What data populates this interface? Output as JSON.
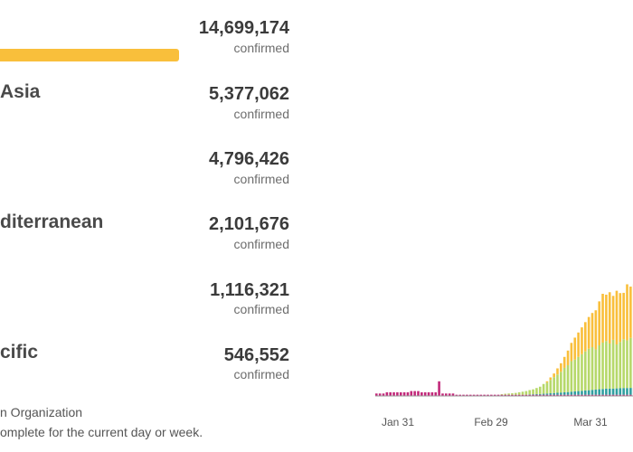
{
  "regions": [
    {
      "name": "",
      "count": "14,699,174",
      "label": "confirmed"
    },
    {
      "name": "Asia",
      "count": "5,377,062",
      "label": "confirmed"
    },
    {
      "name": "",
      "count": "4,796,426",
      "label": "confirmed"
    },
    {
      "name": "diterranean",
      "count": "2,101,676",
      "label": "confirmed"
    },
    {
      "name": "",
      "count": "1,116,321",
      "label": "confirmed"
    },
    {
      "name": "cific",
      "count": "546,552",
      "label": "confirmed"
    }
  ],
  "footnotes": [
    "n Organization",
    "omplete for the current day or week."
  ],
  "colors": {
    "bar_highlight": "#f9bf3b",
    "series_magenta": "#c2297a",
    "series_yellow": "#f9bf3b",
    "series_green": "#b6d86a",
    "series_teal": "#2f9fa0",
    "series_blue": "#3d6fb5"
  },
  "chart_data": {
    "type": "bar",
    "stacked": true,
    "x_ticks": [
      "Jan 31",
      "Feb 29",
      "Mar 31"
    ],
    "note": "daily stacked bars; values not labeled, relative heights 0-1 estimated",
    "series": [
      {
        "color_key": "series_magenta",
        "values": [
          0.02,
          0.02,
          0.02,
          0.03,
          0.03,
          0.03,
          0.03,
          0.03,
          0.03,
          0.03,
          0.04,
          0.04,
          0.04,
          0.03,
          0.03,
          0.03,
          0.03,
          0.03,
          0.12,
          0.02,
          0.02,
          0.02,
          0.02,
          0.01,
          0.01,
          0.01,
          0.01,
          0.01,
          0.01,
          0.01,
          0.01,
          0.01,
          0.01,
          0.01,
          0.01,
          0.01,
          0.01,
          0.01,
          0.01,
          0.01,
          0.01,
          0.01,
          0.01,
          0.01,
          0.01,
          0.01,
          0.01,
          0.01,
          0.01,
          0.01,
          0.01,
          0.01,
          0.01,
          0.01,
          0.01,
          0.01,
          0.01,
          0.01,
          0.01,
          0.01,
          0.01,
          0.01,
          0.01,
          0.01,
          0.01,
          0.01,
          0.01,
          0.01,
          0.01,
          0.01,
          0.01,
          0.01,
          0.01,
          0.01,
          0.01
        ]
      },
      {
        "color_key": "series_teal",
        "values": [
          0,
          0,
          0,
          0,
          0,
          0,
          0,
          0,
          0,
          0,
          0,
          0,
          0,
          0,
          0,
          0,
          0,
          0,
          0,
          0,
          0,
          0,
          0,
          0,
          0,
          0,
          0,
          0,
          0,
          0,
          0,
          0,
          0,
          0,
          0,
          0,
          0,
          0,
          0,
          0,
          0,
          0,
          0,
          0,
          0.003,
          0.004,
          0.005,
          0.006,
          0.008,
          0.01,
          0.012,
          0.014,
          0.016,
          0.018,
          0.02,
          0.022,
          0.025,
          0.028,
          0.03,
          0.032,
          0.035,
          0.037,
          0.04,
          0.042,
          0.045,
          0.047,
          0.05,
          0.05,
          0.05,
          0.052,
          0.053,
          0.055,
          0.055,
          0.056,
          0.057
        ]
      },
      {
        "color_key": "series_green",
        "values": [
          0,
          0,
          0,
          0,
          0,
          0,
          0,
          0,
          0,
          0,
          0,
          0,
          0,
          0,
          0,
          0,
          0,
          0,
          0,
          0,
          0,
          0,
          0,
          0,
          0,
          0,
          0,
          0,
          0,
          0,
          0,
          0,
          0,
          0,
          0,
          0,
          0.005,
          0.008,
          0.01,
          0.012,
          0.015,
          0.02,
          0.025,
          0.03,
          0.035,
          0.04,
          0.05,
          0.06,
          0.08,
          0.09,
          0.11,
          0.13,
          0.15,
          0.17,
          0.2,
          0.22,
          0.25,
          0.26,
          0.28,
          0.3,
          0.32,
          0.34,
          0.35,
          0.33,
          0.36,
          0.38,
          0.39,
          0.37,
          0.4,
          0.36,
          0.38,
          0.4,
          0.39,
          0.41,
          0.4
        ]
      },
      {
        "color_key": "series_yellow",
        "values": [
          0,
          0,
          0,
          0,
          0,
          0,
          0,
          0,
          0,
          0,
          0,
          0,
          0,
          0,
          0,
          0,
          0,
          0,
          0,
          0,
          0,
          0,
          0,
          0,
          0,
          0,
          0,
          0,
          0,
          0,
          0,
          0,
          0,
          0,
          0,
          0,
          0,
          0,
          0,
          0,
          0,
          0,
          0,
          0,
          0,
          0,
          0,
          0,
          0,
          0.01,
          0.02,
          0.03,
          0.05,
          0.07,
          0.09,
          0.12,
          0.15,
          0.18,
          0.2,
          0.22,
          0.24,
          0.26,
          0.28,
          0.32,
          0.36,
          0.4,
          0.38,
          0.42,
          0.36,
          0.44,
          0.4,
          0.38,
          0.46,
          0.42,
          0.45
        ]
      }
    ]
  }
}
